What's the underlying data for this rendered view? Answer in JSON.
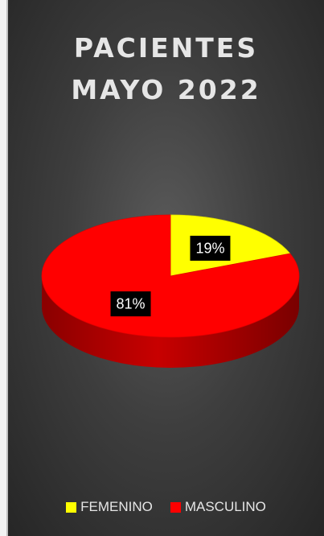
{
  "chart_data": {
    "type": "pie",
    "title": "PACIENTES\nMAYO 2022",
    "categories": [
      "FEMENINO",
      "MASCULINO"
    ],
    "values": [
      19,
      81
    ],
    "data_labels": [
      "19%",
      "81%"
    ],
    "colors": [
      "#ffff00",
      "#ff0000"
    ],
    "legend_position": "bottom",
    "style": "3d"
  }
}
